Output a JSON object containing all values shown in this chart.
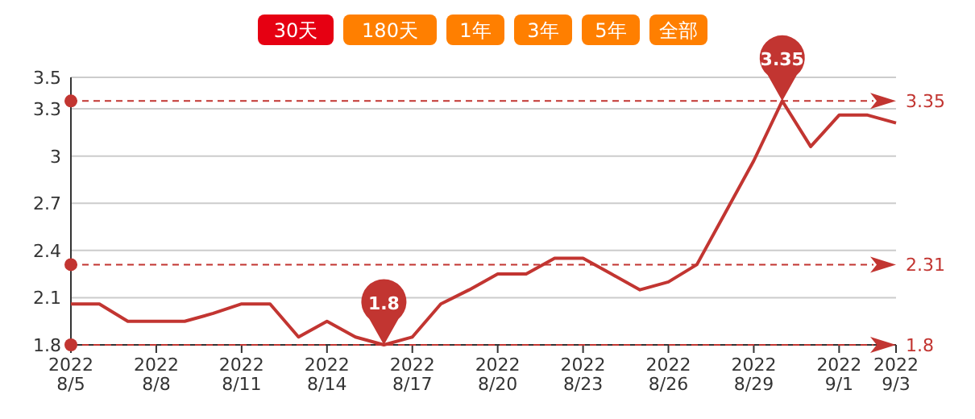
{
  "chart_data": {
    "type": "line",
    "categories": [
      "2022\n8/5",
      null,
      null,
      "2022\n8/8",
      null,
      null,
      "2022\n8/11",
      null,
      null,
      "2022\n8/14",
      null,
      null,
      "2022\n8/17",
      null,
      null,
      "2022\n8/20",
      null,
      null,
      "2022\n8/23",
      null,
      null,
      "2022\n8/26",
      null,
      null,
      "2022\n8/29",
      null,
      null,
      "2022\n9/1",
      null,
      "2022\n9/3"
    ],
    "series": [
      {
        "color": "#c23531",
        "values": [
          2.06,
          2.06,
          1.95,
          1.95,
          1.95,
          2.0,
          2.06,
          2.06,
          1.85,
          1.95,
          1.85,
          1.8,
          1.85,
          2.06,
          2.15,
          2.25,
          2.25,
          2.35,
          2.35,
          2.25,
          2.15,
          2.2,
          2.31,
          2.64,
          2.97,
          3.35,
          3.06,
          3.26,
          3.26,
          3.21
        ]
      }
    ],
    "ylim": [
      1.8,
      3.5
    ],
    "yticks": [
      1.8,
      2.1,
      2.4,
      2.7,
      3,
      3.3,
      3.5
    ],
    "grid": "y",
    "marker": "none",
    "line_style": "solid",
    "ref_lines": [
      {
        "axis": "y",
        "value": 3.35,
        "label": "3.35",
        "color": "#c23531",
        "line_style": "dashed"
      },
      {
        "axis": "y",
        "value": 2.31,
        "label": "2.31",
        "color": "#c23531",
        "line_style": "dashed"
      },
      {
        "axis": "y",
        "value": 1.8,
        "label": "1.8",
        "color": "#c23531",
        "line_style": "dashed"
      }
    ],
    "annotations": [
      "30天",
      "180天",
      "1年",
      "3年",
      "5年",
      "全部",
      {
        "text": "1.8",
        "y": 1.8
      },
      {
        "text": "3.35",
        "y": 3.35
      }
    ]
  }
}
